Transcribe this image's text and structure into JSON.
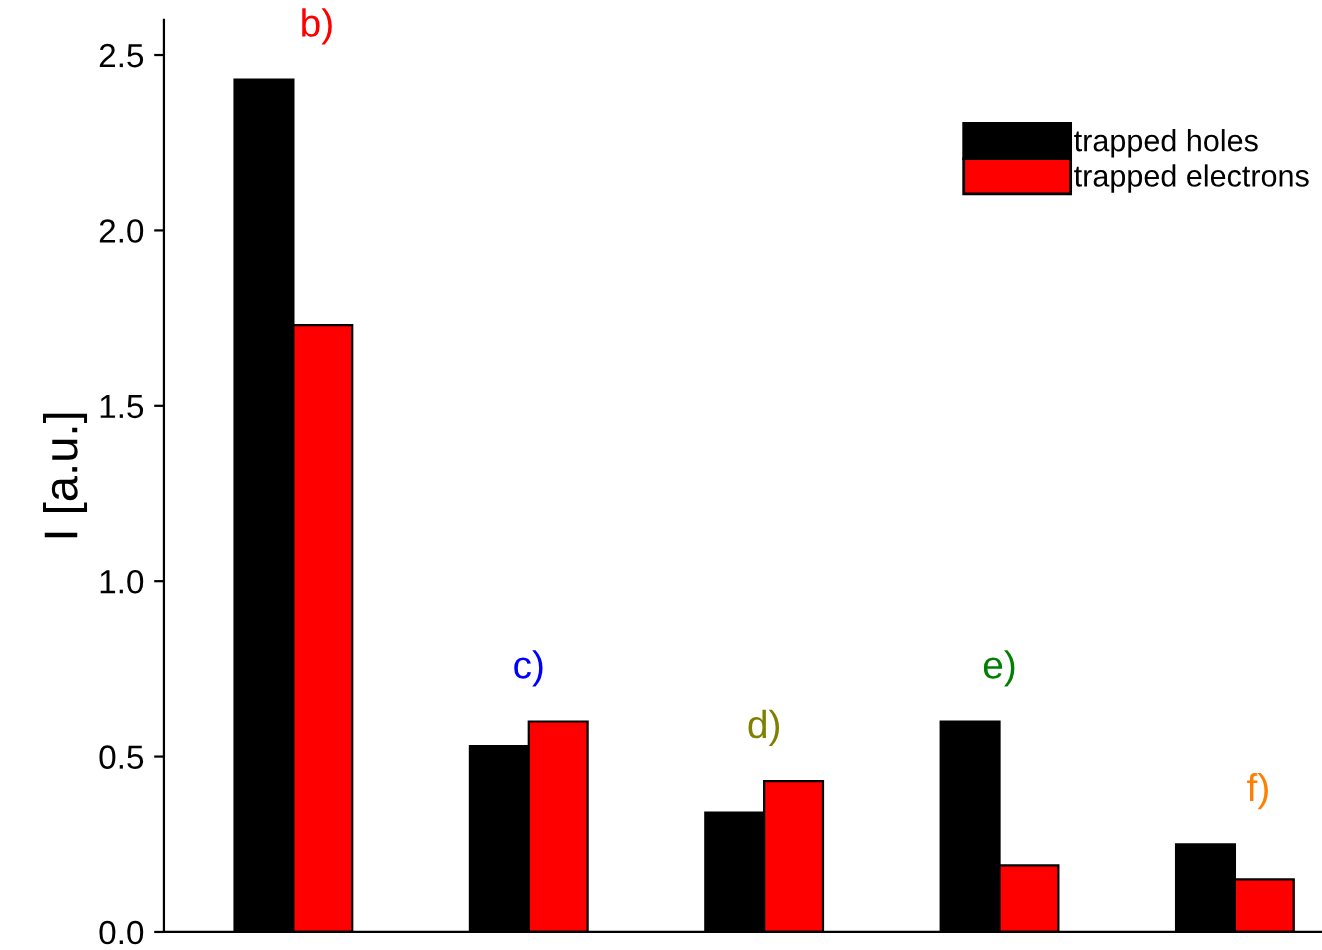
{
  "chart_data": {
    "type": "bar",
    "ylabel": "I [a.u.]",
    "categories": [
      null,
      null,
      null,
      null,
      null
    ],
    "series": [
      {
        "name": "trapped holes",
        "color": "#000000",
        "values": [
          2.43,
          0.53,
          0.34,
          0.6,
          0.25
        ]
      },
      {
        "name": "trapped electrons",
        "color": "#ff0000",
        "values": [
          1.73,
          0.6,
          0.43,
          0.19,
          0.15
        ]
      }
    ],
    "annotations": [
      "b)",
      "c)",
      "d)",
      "e)",
      "f)"
    ],
    "ylim": [
      0,
      2.6
    ],
    "yticks": [
      {
        "value": 0,
        "label": "0.0"
      },
      {
        "value": 0.5,
        "label": "0.5"
      },
      {
        "value": 1,
        "label": "1.0"
      },
      {
        "value": 1.5,
        "label": "1.5"
      },
      {
        "value": 2,
        "label": "2.0"
      },
      {
        "value": 2.5,
        "label": "2.5"
      }
    ],
    "grid": false,
    "legend": "top right"
  }
}
